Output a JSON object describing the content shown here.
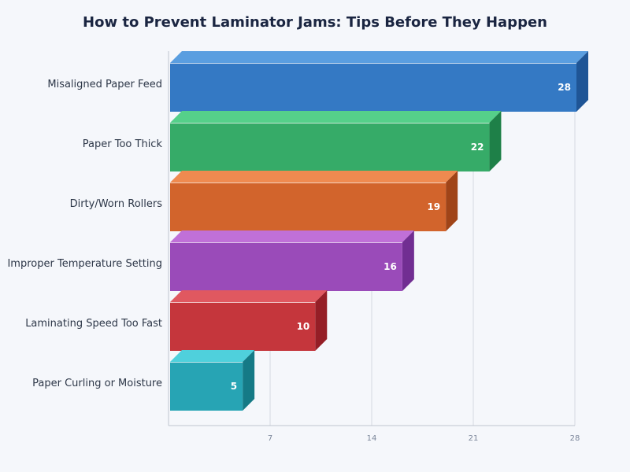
{
  "chart_data": {
    "type": "bar",
    "orientation": "horizontal",
    "style": "3d",
    "title": "How to Prevent Laminator Jams: Tips Before They Happen",
    "categories": [
      "Misaligned Paper Feed",
      "Paper Too Thick",
      "Dirty/Worn Rollers",
      "Improper Temperature Setting",
      "Laminating Speed Too Fast",
      "Paper Curling or Moisture"
    ],
    "values": [
      28,
      22,
      19,
      16,
      10,
      5
    ],
    "colors": [
      "#3479c4",
      "#36ab68",
      "#d2642c",
      "#9a4bb9",
      "#c5363c",
      "#27a4b4"
    ],
    "top_colors": [
      "#5a9ee0",
      "#55d08a",
      "#ef8a50",
      "#c070d8",
      "#e05860",
      "#4fd0dc"
    ],
    "side_colors": [
      "#1f5596",
      "#1e8048",
      "#a04418",
      "#712e92",
      "#951e26",
      "#157a86"
    ],
    "xlim": [
      0,
      28
    ],
    "xticks": [
      7,
      14,
      21,
      28
    ],
    "grid": true,
    "data_labels": true
  }
}
